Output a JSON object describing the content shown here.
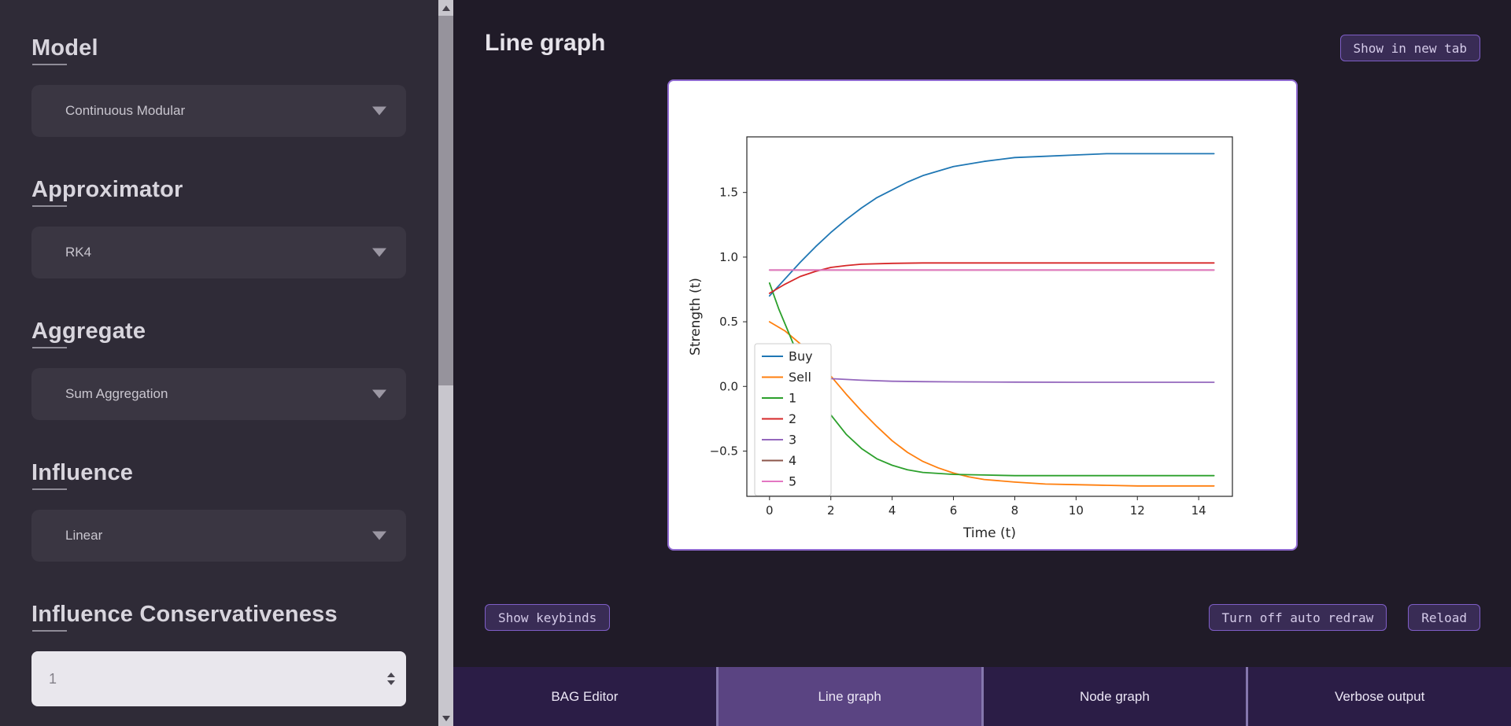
{
  "sidebar": {
    "fields": [
      {
        "label": "Model",
        "value": "Continuous Modular"
      },
      {
        "label": "Approximator",
        "value": "RK4"
      },
      {
        "label": "Aggregate",
        "value": "Sum Aggregation"
      },
      {
        "label": "Influence",
        "value": "Linear"
      },
      {
        "label": "Influence Conservativeness",
        "value": "1"
      }
    ]
  },
  "main": {
    "title": "Line graph",
    "buttons": {
      "show_in_new_tab": "Show in new tab",
      "show_keybinds": "Show keybinds",
      "auto_redraw": "Turn off auto redraw",
      "reload": "Reload"
    }
  },
  "tabs": {
    "items": [
      {
        "label": "BAG Editor",
        "active": false
      },
      {
        "label": "Line graph",
        "active": true
      },
      {
        "label": "Node graph",
        "active": false
      },
      {
        "label": "Verbose output",
        "active": false
      }
    ]
  },
  "theme": {
    "panel_border": "#8f6ad0",
    "button_border": "#7e5ec6",
    "tab_active_bg": "#5a4482",
    "tab_bar_bg": "#2b1d46",
    "sidebar_bg": "#2f2b37",
    "main_bg": "#201b28"
  },
  "chart_data": {
    "type": "line",
    "xlabel": "Time (t)",
    "ylabel": "Strength (t)",
    "xlim": [
      -0.74,
      15.1
    ],
    "ylim": [
      -0.85,
      1.93
    ],
    "xticks": [
      0,
      2,
      4,
      6,
      8,
      10,
      12,
      14
    ],
    "yticks": [
      -0.5,
      0.0,
      0.5,
      1.0,
      1.5
    ],
    "grid": false,
    "legend_position": "center left",
    "series": [
      {
        "name": "Buy",
        "color": "#1f77b4",
        "x": [
          0,
          0.5,
          1,
          1.5,
          2,
          2.5,
          3,
          3.5,
          4,
          4.5,
          5,
          6,
          7,
          8,
          9,
          10,
          11,
          12,
          13,
          14,
          14.5
        ],
        "y": [
          0.7,
          0.83,
          0.96,
          1.08,
          1.19,
          1.29,
          1.38,
          1.46,
          1.52,
          1.58,
          1.63,
          1.7,
          1.74,
          1.77,
          1.78,
          1.79,
          1.8,
          1.8,
          1.8,
          1.8,
          1.8
        ]
      },
      {
        "name": "Sell",
        "color": "#ff7f0e",
        "x": [
          0,
          0.5,
          1,
          1.5,
          2,
          2.5,
          3,
          3.5,
          4,
          4.5,
          5,
          5.5,
          6,
          6.5,
          7,
          8,
          9,
          10,
          11,
          12,
          13,
          14,
          14.5
        ],
        "y": [
          0.5,
          0.43,
          0.33,
          0.21,
          0.08,
          -0.06,
          -0.19,
          -0.31,
          -0.42,
          -0.51,
          -0.58,
          -0.63,
          -0.67,
          -0.7,
          -0.72,
          -0.74,
          -0.755,
          -0.76,
          -0.765,
          -0.77,
          -0.77,
          -0.77,
          -0.77
        ]
      },
      {
        "name": "1",
        "color": "#2ca02c",
        "x": [
          0,
          0.3,
          0.6,
          1,
          1.5,
          2,
          2.5,
          3,
          3.5,
          4,
          4.5,
          5,
          6,
          7,
          8,
          9,
          10,
          11,
          12,
          13,
          14,
          14.5
        ],
        "y": [
          0.8,
          0.6,
          0.43,
          0.2,
          -0.03,
          -0.22,
          -0.37,
          -0.48,
          -0.56,
          -0.61,
          -0.645,
          -0.665,
          -0.68,
          -0.685,
          -0.69,
          -0.69,
          -0.69,
          -0.69,
          -0.69,
          -0.69,
          -0.69,
          -0.69
        ]
      },
      {
        "name": "2",
        "color": "#d62728",
        "x": [
          0,
          0.5,
          1,
          1.5,
          2,
          2.5,
          3,
          4,
          5,
          6,
          8,
          10,
          12,
          14,
          14.5
        ],
        "y": [
          0.72,
          0.79,
          0.85,
          0.89,
          0.92,
          0.935,
          0.945,
          0.952,
          0.955,
          0.955,
          0.955,
          0.955,
          0.955,
          0.955,
          0.955
        ]
      },
      {
        "name": "3",
        "color": "#9467bd",
        "x": [
          0,
          0.5,
          1,
          1.5,
          2,
          3,
          4,
          5,
          6,
          8,
          10,
          12,
          14,
          14.5
        ],
        "y": [
          0.12,
          0.1,
          0.085,
          0.07,
          0.06,
          0.048,
          0.04,
          0.037,
          0.035,
          0.033,
          0.032,
          0.032,
          0.032,
          0.032
        ]
      },
      {
        "name": "4",
        "color": "#8c564b",
        "x": [
          0,
          2,
          4,
          6,
          8,
          10,
          12,
          14,
          14.5
        ],
        "y": [
          0.9,
          0.9,
          0.9,
          0.9,
          0.9,
          0.9,
          0.9,
          0.9,
          0.9
        ]
      },
      {
        "name": "5",
        "color": "#e377c2",
        "x": [
          0,
          2,
          4,
          6,
          8,
          10,
          12,
          14,
          14.5
        ],
        "y": [
          0.9,
          0.9,
          0.9,
          0.9,
          0.9,
          0.9,
          0.9,
          0.9,
          0.9
        ]
      }
    ]
  }
}
